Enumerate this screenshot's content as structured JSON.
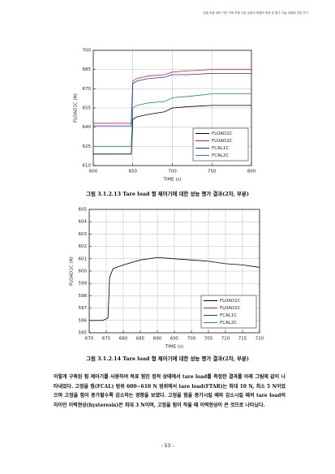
{
  "header": {
    "text": "정밀 하중 제어 기반 차체 부품 조립 공정의 체결력 측정 및 평가 기술 개발에 관한 연구"
  },
  "chart_data": [
    {
      "type": "line",
      "xlabel": "TIME (s)",
      "ylabel": "FLOAD1C (N)",
      "x": [
        600,
        648,
        650,
        655,
        670,
        690,
        700,
        720,
        750,
        780,
        800
      ],
      "series": [
        {
          "name": "FLOAD1C",
          "color": "#000000",
          "values": [
            619,
            619,
            646,
            648,
            650,
            652,
            655,
            656,
            657,
            657,
            657
          ]
        },
        {
          "name": "FLOAD2C",
          "color": "#e8202a",
          "values": [
            643,
            643,
            676,
            678,
            680,
            681,
            683,
            684,
            685,
            685,
            685
          ]
        },
        {
          "name": "FCAL1C",
          "color": "#1f2fd0",
          "values": [
            641,
            641,
            674,
            676,
            678,
            679,
            681,
            681,
            682,
            682,
            682
          ]
        },
        {
          "name": "FCAL2C",
          "color": "#1a8c8c",
          "values": [
            625,
            625,
            655,
            657,
            659,
            660,
            663,
            664,
            666,
            666,
            666
          ]
        }
      ],
      "xlim": [
        600,
        800
      ],
      "xticks": [
        600,
        650,
        700,
        750,
        800
      ],
      "ylim": [
        610,
        700
      ],
      "yticks": [
        610,
        625,
        640,
        655,
        670,
        685,
        700
      ],
      "grid": true,
      "legend": "lower right"
    },
    {
      "type": "line",
      "xlabel": "TIME (s)",
      "ylabel": "FLOAD1C (N)",
      "x": [
        670,
        674,
        675.5,
        676,
        677,
        680,
        685,
        690,
        695,
        700,
        705,
        710,
        715,
        720
      ],
      "series": [
        {
          "name": "FLOAD1C",
          "color": "#000000",
          "values": [
            596,
            596,
            596.2,
            599.5,
            600.2,
            600.5,
            600.9,
            601.1,
            601.0,
            600.9,
            600.8,
            600.6,
            600.5,
            600.3
          ]
        },
        {
          "name": "FLOAD2C",
          "color": "#e8202a",
          "values": [
            null,
            null,
            null,
            null,
            null,
            null,
            null,
            null,
            null,
            null,
            null,
            null,
            null,
            null
          ]
        },
        {
          "name": "FCAL1C",
          "color": "#1f2fd0",
          "values": [
            null,
            null,
            null,
            null,
            null,
            null,
            null,
            null,
            null,
            null,
            null,
            null,
            null,
            null
          ]
        },
        {
          "name": "FCAL2C",
          "color": "#1a8c8c",
          "values": [
            null,
            null,
            null,
            null,
            null,
            null,
            null,
            null,
            null,
            null,
            null,
            null,
            null,
            null
          ]
        }
      ],
      "xlim": [
        670,
        720
      ],
      "xticks": [
        670,
        675,
        680,
        685,
        690,
        695,
        700,
        705,
        710,
        715,
        720
      ],
      "ylim": [
        595,
        605
      ],
      "yticks": [
        595,
        596,
        597,
        598,
        599,
        600,
        601,
        602,
        603,
        604,
        605
      ],
      "grid": true,
      "legend": "lower right"
    }
  ],
  "captions": [
    "그림 3.1.2.13 Tare load 형 제어기에 대한 성능 평가 결과(2차, 부분)",
    "그림 3.1.2.14 Tare load 형 제어기에 대한 성능 평가 결과(2차, 부분)"
  ],
  "paragraph": "이렇게 구축된 힘 제어기를 사용하여 목표 힘인 정적 상태에서 tare load를 측정한 결과를 아래 그림에 같이 나타내었다. 고정을 힘(FCAL) 범위 600~610 N 범위에서 tare load(FTAR)는 최대 10 N, 최소 5 N이었으며 고정을 힘이 증가할수록 감소하는 경향을 보였다. 고정을 힘을 증가시킬 때와 감소시킬 때의 tare load의 차이인 이력현상(hysteresis)은 최대 3 N이며, 고정을 힘이 작을 때 이력현상이 큰 것으로 나타났다.",
  "page_number": "- 53 -"
}
